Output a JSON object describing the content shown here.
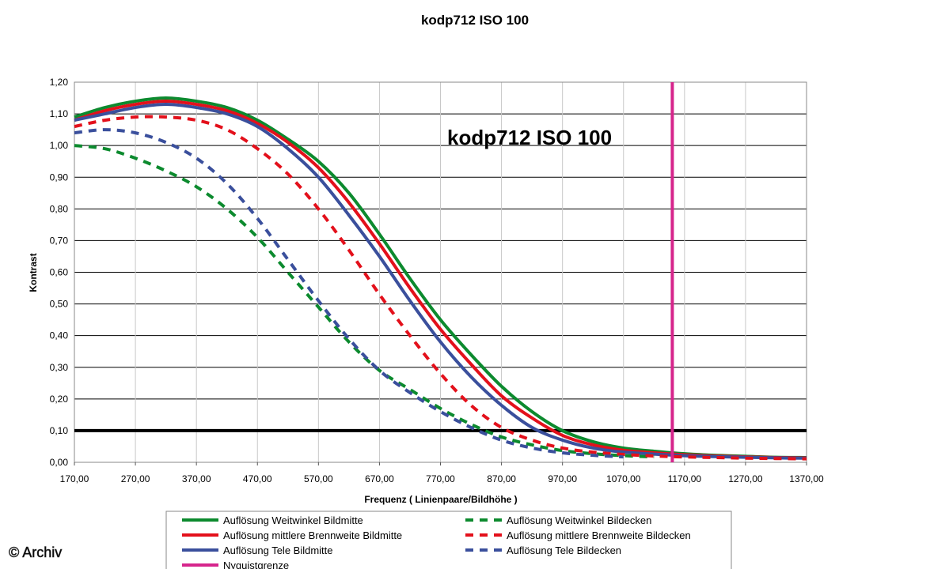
{
  "copyright": "© Archiv",
  "chart_data": {
    "type": "line",
    "title": "kodp712 ISO 100",
    "annotation": "kodp712 ISO 100",
    "xlabel": "Frequenz ( Linienpaare/Bildhöhe )",
    "ylabel": "Kontrast",
    "xlim": [
      170,
      1370
    ],
    "ylim": [
      0,
      1.2
    ],
    "xticks": [
      170,
      270,
      370,
      470,
      570,
      670,
      770,
      870,
      970,
      1070,
      1170,
      1270,
      1370
    ],
    "xtick_labels": [
      "170,00",
      "270,00",
      "370,00",
      "470,00",
      "570,00",
      "670,00",
      "770,00",
      "870,00",
      "970,00",
      "1070,00",
      "1170,00",
      "1270,00",
      "1370,00"
    ],
    "yticks": [
      0,
      0.1,
      0.2,
      0.3,
      0.4,
      0.5,
      0.6,
      0.7,
      0.8,
      0.9,
      1.0,
      1.1,
      1.2
    ],
    "ytick_labels": [
      "0,00",
      "0,10",
      "0,20",
      "0,30",
      "0,40",
      "0,50",
      "0,60",
      "0,70",
      "0,80",
      "0,90",
      "1,00",
      "1,10",
      "1,20"
    ],
    "grid": "horizontal",
    "reference_line": {
      "y": 0.1
    },
    "nyquist_x": 1150,
    "legend_position": "bottom",
    "series": [
      {
        "name": "Auflösung Weitwinkel Bildmitte",
        "color": "#0c8a2e",
        "dash": false,
        "x": [
          170,
          220,
          270,
          320,
          370,
          420,
          470,
          520,
          570,
          620,
          670,
          720,
          770,
          820,
          870,
          920,
          970,
          1020,
          1070,
          1120,
          1170,
          1220,
          1270,
          1320,
          1370
        ],
        "y": [
          1.09,
          1.12,
          1.14,
          1.15,
          1.14,
          1.12,
          1.08,
          1.02,
          0.95,
          0.85,
          0.72,
          0.58,
          0.45,
          0.34,
          0.24,
          0.16,
          0.1,
          0.065,
          0.045,
          0.035,
          0.027,
          0.022,
          0.019,
          0.016,
          0.015
        ]
      },
      {
        "name": "Auflösung mittlere Brennweite Bildmitte",
        "color": "#e3101b",
        "dash": false,
        "x": [
          170,
          220,
          270,
          320,
          370,
          420,
          470,
          520,
          570,
          620,
          670,
          720,
          770,
          820,
          870,
          920,
          970,
          1020,
          1070,
          1120,
          1170,
          1220,
          1270,
          1320,
          1370
        ],
        "y": [
          1.08,
          1.11,
          1.13,
          1.14,
          1.13,
          1.11,
          1.07,
          1.01,
          0.93,
          0.82,
          0.69,
          0.55,
          0.42,
          0.31,
          0.21,
          0.14,
          0.085,
          0.055,
          0.038,
          0.03,
          0.024,
          0.02,
          0.017,
          0.015,
          0.014
        ]
      },
      {
        "name": "Auflösung Tele Bildmitte",
        "color": "#3a4f9c",
        "dash": false,
        "x": [
          170,
          220,
          270,
          320,
          370,
          420,
          470,
          520,
          570,
          620,
          670,
          720,
          770,
          820,
          870,
          920,
          970,
          1020,
          1070,
          1120,
          1170,
          1220,
          1270,
          1320,
          1370
        ],
        "y": [
          1.08,
          1.1,
          1.12,
          1.13,
          1.12,
          1.1,
          1.06,
          0.99,
          0.9,
          0.78,
          0.65,
          0.51,
          0.38,
          0.27,
          0.18,
          0.11,
          0.07,
          0.045,
          0.032,
          0.026,
          0.021,
          0.018,
          0.016,
          0.014,
          0.013
        ]
      },
      {
        "name": "Nyquistgrenze",
        "color": "#d6258c",
        "dash": false,
        "x": [
          1150,
          1150
        ],
        "y": [
          0,
          1.2
        ]
      },
      {
        "name": "Auflösung Weitwinkel Bildecken",
        "color": "#0c8a2e",
        "dash": true,
        "x": [
          170,
          220,
          270,
          320,
          370,
          420,
          470,
          520,
          570,
          620,
          670,
          720,
          770,
          820,
          870,
          920,
          970,
          1020,
          1070,
          1120
        ],
        "y": [
          1.0,
          0.99,
          0.96,
          0.92,
          0.87,
          0.8,
          0.71,
          0.6,
          0.49,
          0.38,
          0.29,
          0.23,
          0.17,
          0.12,
          0.08,
          0.055,
          0.037,
          0.027,
          0.021,
          0.017
        ]
      },
      {
        "name": "Auflösung mittlere Brennweite Bildecken",
        "color": "#e3101b",
        "dash": true,
        "x": [
          170,
          220,
          270,
          320,
          370,
          420,
          470,
          520,
          570,
          620,
          670,
          720,
          770,
          820,
          870,
          920,
          970,
          1020,
          1070,
          1120,
          1170,
          1220,
          1270,
          1320,
          1370
        ],
        "y": [
          1.06,
          1.08,
          1.09,
          1.09,
          1.08,
          1.05,
          0.99,
          0.91,
          0.8,
          0.67,
          0.53,
          0.4,
          0.28,
          0.18,
          0.11,
          0.07,
          0.045,
          0.032,
          0.025,
          0.02,
          0.017,
          0.015,
          0.013,
          0.012,
          0.011
        ]
      },
      {
        "name": "Auflösung Tele Bildecken",
        "color": "#3a4f9c",
        "dash": true,
        "x": [
          170,
          220,
          270,
          320,
          370,
          420,
          470,
          520,
          570,
          620,
          670,
          720,
          770,
          820,
          870,
          920,
          970,
          1020,
          1070
        ],
        "y": [
          1.04,
          1.05,
          1.04,
          1.01,
          0.96,
          0.88,
          0.77,
          0.64,
          0.51,
          0.39,
          0.29,
          0.22,
          0.16,
          0.11,
          0.07,
          0.045,
          0.03,
          0.022,
          0.017
        ]
      }
    ]
  }
}
